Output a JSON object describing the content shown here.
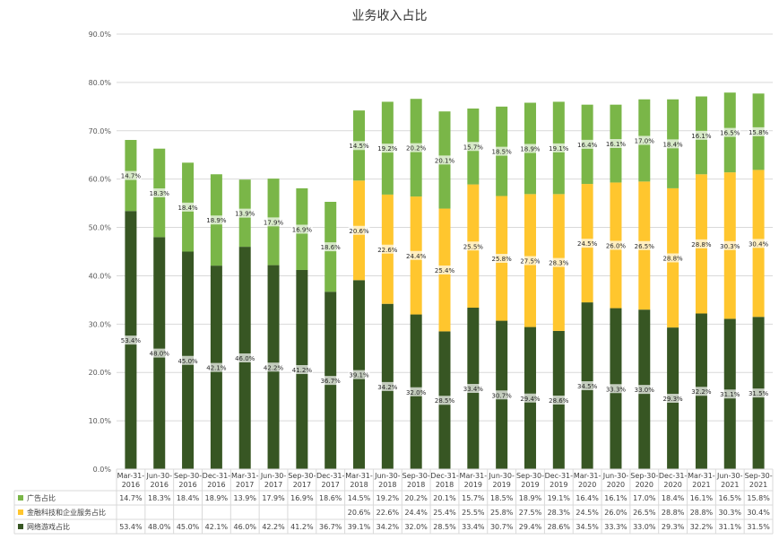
{
  "chart_data": {
    "type": "bar",
    "stacked": true,
    "title": "业务收入占比",
    "xlabel": "",
    "ylabel": "",
    "ylim": [
      0,
      90
    ],
    "y_ticks": [
      "0.0%",
      "10.0%",
      "20.0%",
      "30.0%",
      "40.0%",
      "50.0%",
      "60.0%",
      "70.0%",
      "80.0%",
      "90.0%"
    ],
    "y_tick_values": [
      0,
      10,
      20,
      30,
      40,
      50,
      60,
      70,
      80,
      90
    ],
    "grid": true,
    "legend": "data-table",
    "categories": [
      "Mar-31-2016",
      "Jun-30-2016",
      "Sep-30-2016",
      "Dec-31-2016",
      "Mar-31-2017",
      "Jun-30-2017",
      "Sep-30-2017",
      "Dec-31-2017",
      "Mar-31-2018",
      "Jun-30-2018",
      "Sep-30-2018",
      "Dec-31-2018",
      "Mar-31-2019",
      "Jun-30-2019",
      "Sep-30-2019",
      "Dec-31-2019",
      "Mar-31-2020",
      "Jun-30-2020",
      "Sep-30-2020",
      "Dec-31-2020",
      "Mar-31-2021",
      "Jun-30-2021",
      "Sep-30-2021"
    ],
    "category_lines": [
      [
        "Mar-31-",
        "2016"
      ],
      [
        "Jun-30-",
        "2016"
      ],
      [
        "Sep-30-",
        "2016"
      ],
      [
        "Dec-31-",
        "2016"
      ],
      [
        "Mar-31-",
        "2017"
      ],
      [
        "Jun-30-",
        "2017"
      ],
      [
        "Sep-30-",
        "2017"
      ],
      [
        "Dec-31-",
        "2017"
      ],
      [
        "Mar-31-",
        "2018"
      ],
      [
        "Jun-30-",
        "2018"
      ],
      [
        "Sep-30-",
        "2018"
      ],
      [
        "Dec-31-",
        "2018"
      ],
      [
        "Mar-31-",
        "2019"
      ],
      [
        "Jun-30-",
        "2019"
      ],
      [
        "Sep-30-",
        "2019"
      ],
      [
        "Dec-31-",
        "2019"
      ],
      [
        "Mar-31-",
        "2020"
      ],
      [
        "Jun-30-",
        "2020"
      ],
      [
        "Sep-30-",
        "2020"
      ],
      [
        "Dec-31-",
        "2020"
      ],
      [
        "Mar-31-",
        "2021"
      ],
      [
        "Jun-30-",
        "2021"
      ],
      [
        "Sep-30-",
        "2021"
      ]
    ],
    "series": [
      {
        "name": "网络游戏占比",
        "color": "#375623",
        "values": [
          53.4,
          48.0,
          45.0,
          42.1,
          46.0,
          42.2,
          41.2,
          36.7,
          39.1,
          34.2,
          32.0,
          28.5,
          33.4,
          30.7,
          29.4,
          28.6,
          34.5,
          33.3,
          33.0,
          29.3,
          32.2,
          31.1,
          31.5
        ],
        "labels": [
          "53.4%",
          "48.0%",
          "45.0%",
          "42.1%",
          "46.0%",
          "42.2%",
          "41.2%",
          "36.7%",
          "39.1%",
          "34.2%",
          "32.0%",
          "28.5%",
          "33.4%",
          "30.7%",
          "29.4%",
          "28.6%",
          "34.5%",
          "33.3%",
          "33.0%",
          "29.3%",
          "32.2%",
          "31.1%",
          "31.5%"
        ]
      },
      {
        "name": "金融科技和企业服务占比",
        "color": "#FFC62E",
        "values": [
          null,
          null,
          null,
          null,
          null,
          null,
          null,
          null,
          20.6,
          22.6,
          24.4,
          25.4,
          25.5,
          25.8,
          27.5,
          28.3,
          24.5,
          26.0,
          26.5,
          28.8,
          28.8,
          30.3,
          30.4
        ],
        "labels": [
          "",
          "",
          "",
          "",
          "",
          "",
          "",
          "",
          "20.6%",
          "22.6%",
          "24.4%",
          "25.4%",
          "25.5%",
          "25.8%",
          "27.5%",
          "28.3%",
          "24.5%",
          "26.0%",
          "26.5%",
          "28.8%",
          "28.8%",
          "30.3%",
          "30.4%"
        ]
      },
      {
        "name": "广告占比",
        "color": "#7AB648",
        "values": [
          14.7,
          18.3,
          18.4,
          18.9,
          13.9,
          17.9,
          16.9,
          18.6,
          14.5,
          19.2,
          20.2,
          20.1,
          15.7,
          18.5,
          18.9,
          19.1,
          16.4,
          16.1,
          17.0,
          18.4,
          16.1,
          16.5,
          15.8
        ],
        "labels": [
          "14.7%",
          "18.3%",
          "18.4%",
          "18.9%",
          "13.9%",
          "17.9%",
          "16.9%",
          "18.6%",
          "14.5%",
          "19.2%",
          "20.2%",
          "20.1%",
          "15.7%",
          "18.5%",
          "18.9%",
          "19.1%",
          "16.4%",
          "16.1%",
          "17.0%",
          "18.4%",
          "16.1%",
          "16.5%",
          "15.8%"
        ]
      }
    ],
    "table_order": [
      "广告占比",
      "金融科技和企业服务占比",
      "网络游戏占比"
    ]
  }
}
